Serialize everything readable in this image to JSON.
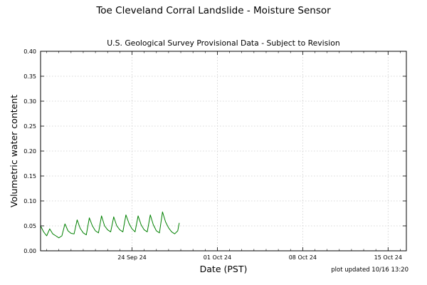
{
  "chart_data": {
    "type": "line",
    "title": "Toe Cleveland Corral Landslide - Moisture Sensor",
    "subtitle": "U.S. Geological Survey Provisional Data - Subject to Revision",
    "xlabel": "Date (PST)",
    "ylabel": "Volumetric water content",
    "footnote": "plot updated 10/16 13:20",
    "grid": true,
    "xlim": [
      "2024-09-16T12:00",
      "2024-10-16T12:00"
    ],
    "ylim": [
      0,
      0.4
    ],
    "y_ticks": [
      0.0,
      0.05,
      0.1,
      0.15,
      0.2,
      0.25,
      0.3,
      0.35,
      0.4
    ],
    "y_tick_labels": [
      "0.00",
      "0.05",
      "0.10",
      "0.15",
      "0.20",
      "0.25",
      "0.30",
      "0.35",
      "0.40"
    ],
    "x_ticks": [
      "2024-09-24",
      "2024-10-01",
      "2024-10-08",
      "2024-10-15"
    ],
    "x_tick_labels": [
      "24 Sep 24",
      "01 Oct 24",
      "08 Oct 24",
      "15 Oct 24"
    ],
    "x_minor_ticks": [
      "2024-09-17",
      "2024-09-18",
      "2024-09-19",
      "2024-09-20",
      "2024-09-21",
      "2024-09-22",
      "2024-09-23",
      "2024-09-25",
      "2024-09-26",
      "2024-09-27",
      "2024-09-28",
      "2024-09-29",
      "2024-09-30",
      "2024-10-02",
      "2024-10-03",
      "2024-10-04",
      "2024-10-05",
      "2024-10-06",
      "2024-10-07",
      "2024-10-09",
      "2024-10-10",
      "2024-10-11",
      "2024-10-12",
      "2024-10-13",
      "2024-10-14",
      "2024-10-16"
    ],
    "series": [
      {
        "color": "#008000",
        "x": [
          "2024-09-16T12:00",
          "2024-09-16T18:00",
          "2024-09-17T00:00",
          "2024-09-17T06:00",
          "2024-09-17T12:00",
          "2024-09-17T18:00",
          "2024-09-18T00:00",
          "2024-09-18T06:00",
          "2024-09-18T12:00",
          "2024-09-18T18:00",
          "2024-09-19T00:00",
          "2024-09-19T06:00",
          "2024-09-19T12:00",
          "2024-09-19T18:00",
          "2024-09-20T00:00",
          "2024-09-20T06:00",
          "2024-09-20T12:00",
          "2024-09-20T18:00",
          "2024-09-21T00:00",
          "2024-09-21T06:00",
          "2024-09-21T12:00",
          "2024-09-21T18:00",
          "2024-09-22T00:00",
          "2024-09-22T06:00",
          "2024-09-22T12:00",
          "2024-09-22T18:00",
          "2024-09-23T00:00",
          "2024-09-23T06:00",
          "2024-09-23T12:00",
          "2024-09-23T18:00",
          "2024-09-24T00:00",
          "2024-09-24T06:00",
          "2024-09-24T12:00",
          "2024-09-24T18:00",
          "2024-09-25T00:00",
          "2024-09-25T06:00",
          "2024-09-25T12:00",
          "2024-09-25T18:00",
          "2024-09-26T00:00",
          "2024-09-26T06:00",
          "2024-09-26T12:00",
          "2024-09-26T18:00",
          "2024-09-27T00:00",
          "2024-09-27T06:00",
          "2024-09-27T12:00",
          "2024-09-27T18:00",
          "2024-09-27T21:00"
        ],
        "y": [
          0.05,
          0.038,
          0.03,
          0.044,
          0.034,
          0.03,
          0.026,
          0.03,
          0.054,
          0.04,
          0.035,
          0.034,
          0.062,
          0.045,
          0.036,
          0.032,
          0.066,
          0.05,
          0.04,
          0.036,
          0.07,
          0.05,
          0.042,
          0.038,
          0.068,
          0.05,
          0.042,
          0.038,
          0.072,
          0.055,
          0.044,
          0.038,
          0.07,
          0.052,
          0.042,
          0.038,
          0.072,
          0.052,
          0.04,
          0.036,
          0.078,
          0.058,
          0.046,
          0.038,
          0.034,
          0.04,
          0.056
        ]
      }
    ]
  }
}
